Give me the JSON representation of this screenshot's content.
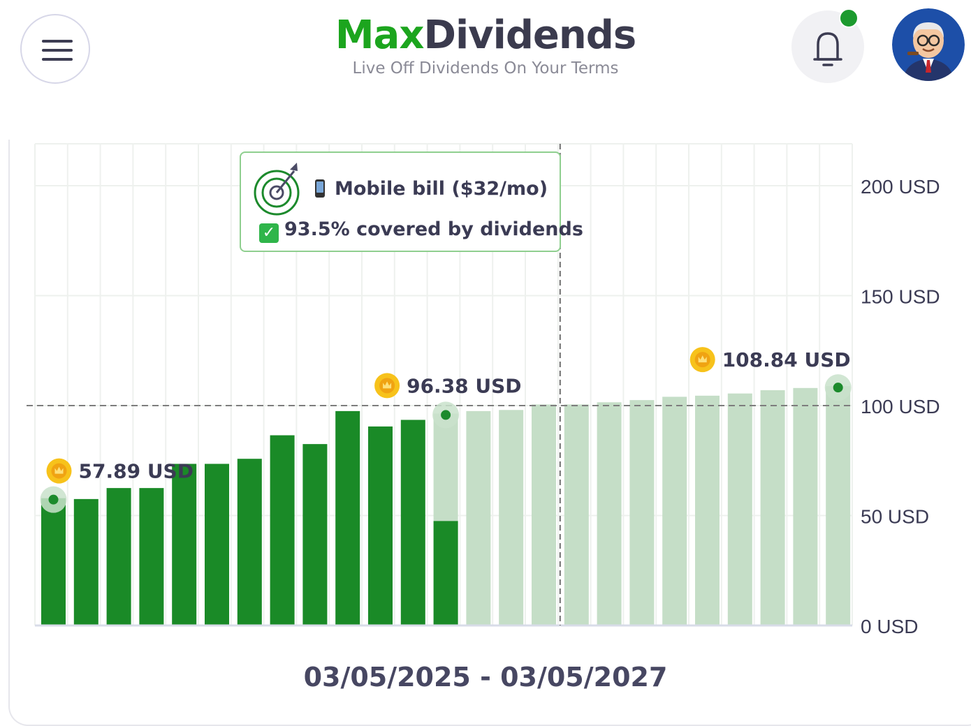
{
  "header": {
    "brand_part1": "Max",
    "brand_part2": "Dividends",
    "tagline": "Live Off Dividends On Your Terms",
    "menu_icon": "hamburger-icon",
    "notification_icon": "bell-icon",
    "avatar_icon": "user-avatar"
  },
  "colors": {
    "brand_green": "#1ca51e",
    "bar_actual": "#1a8a27",
    "bar_projected": "#c5dec7",
    "text_dark": "#3b3b54"
  },
  "tooltip": {
    "icon": "target-icon",
    "goal_icon": "mobile-phone-icon",
    "goal_label": "Mobile bill ($32/mo)",
    "status_icon": "check-mark-icon",
    "coverage_label": "93.5% covered by dividends"
  },
  "chart_data": {
    "type": "bar",
    "y_unit": "USD",
    "ylim": [
      0,
      220
    ],
    "y_ticks": [
      "0 USD",
      "50 USD",
      "100 USD",
      "150 USD",
      "200 USD"
    ],
    "y_tick_values": [
      0,
      50,
      100,
      150,
      200
    ],
    "goal_line": 100,
    "series": [
      {
        "status": "actual",
        "values": [
          57.89,
          57.5,
          62.5,
          62.5,
          73.5,
          73.5,
          75.8,
          86.5,
          82.5,
          97.5,
          90.5,
          93.5,
          47.5
        ]
      },
      {
        "status": "projected",
        "values": [
          0,
          0,
          0,
          0,
          0,
          0,
          0,
          0,
          0,
          0,
          0,
          0,
          96.38,
          97.5,
          98,
          100.5,
          100.5,
          101.5,
          102.5,
          104,
          104.5,
          105.5,
          107,
          108,
          108.84
        ]
      }
    ],
    "annotations": [
      {
        "bar_index": 0,
        "value": 57.89,
        "label": "57.89 USD"
      },
      {
        "bar_index": 12,
        "value": 96.38,
        "label": "96.38 USD"
      },
      {
        "bar_index": 24,
        "value": 108.84,
        "label": "108.84 USD"
      }
    ],
    "marker_bar_index": 16,
    "date_range": "03/05/2025 - 03/05/2027"
  }
}
